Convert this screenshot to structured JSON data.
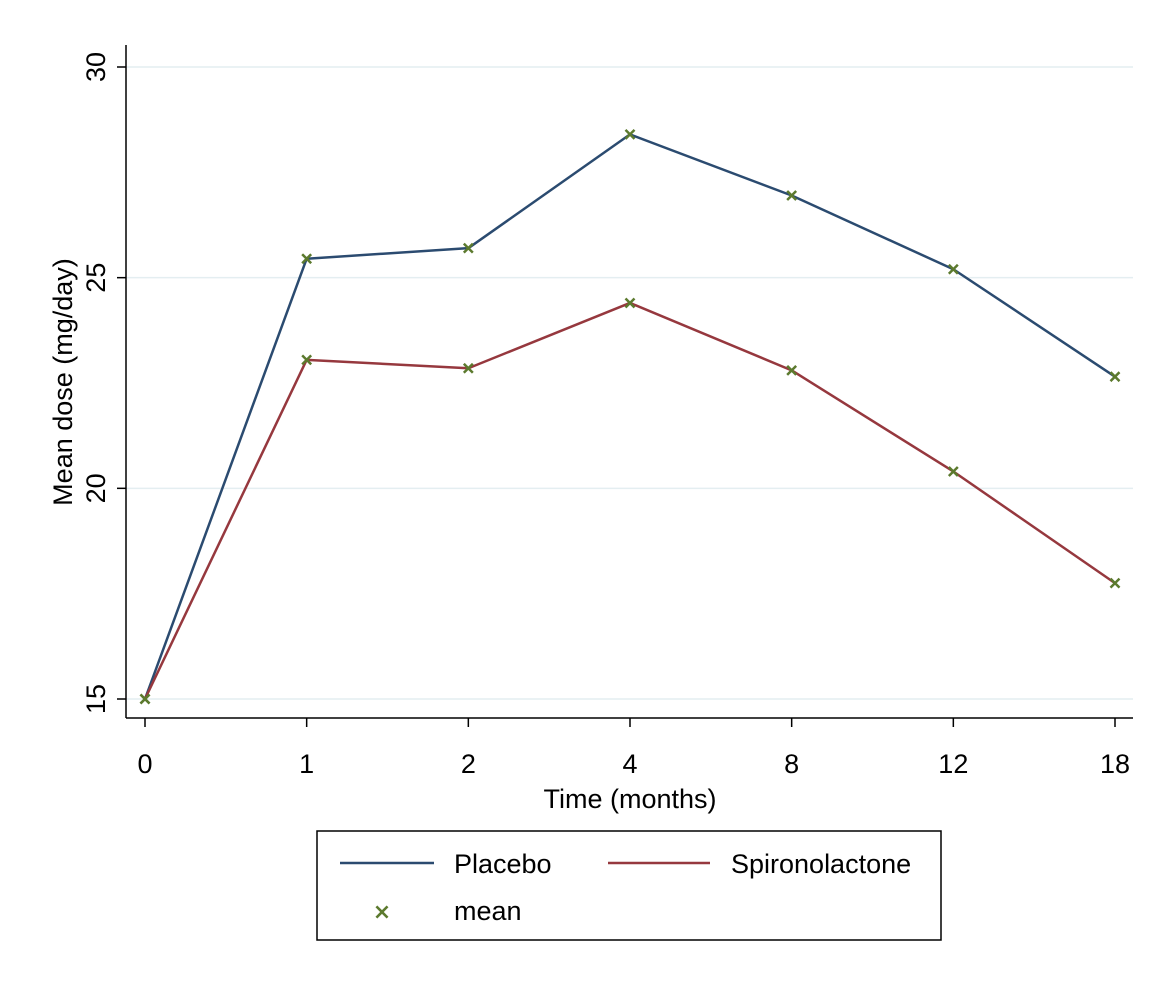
{
  "chart_data": {
    "type": "line",
    "title": "",
    "xlabel": "Time (months)",
    "ylabel": "Mean dose (mg/day)",
    "categories": [
      "0",
      "1",
      "2",
      "4",
      "8",
      "12",
      "18"
    ],
    "yticks": [
      "15",
      "20",
      "25",
      "30"
    ],
    "ylim": [
      15,
      30
    ],
    "grid": "horizontal",
    "legend_position": "bottom",
    "series": [
      {
        "name": "Placebo",
        "color": "#2b4b70",
        "values": [
          15.0,
          25.45,
          25.7,
          28.4,
          26.95,
          25.2,
          22.65
        ]
      },
      {
        "name": "Spironolactone",
        "color": "#96383e",
        "values": [
          15.0,
          23.05,
          22.85,
          24.4,
          22.8,
          20.4,
          17.75
        ]
      }
    ],
    "marker": {
      "label": "mean",
      "symbol": "×",
      "color": "#5c7a2e"
    }
  }
}
